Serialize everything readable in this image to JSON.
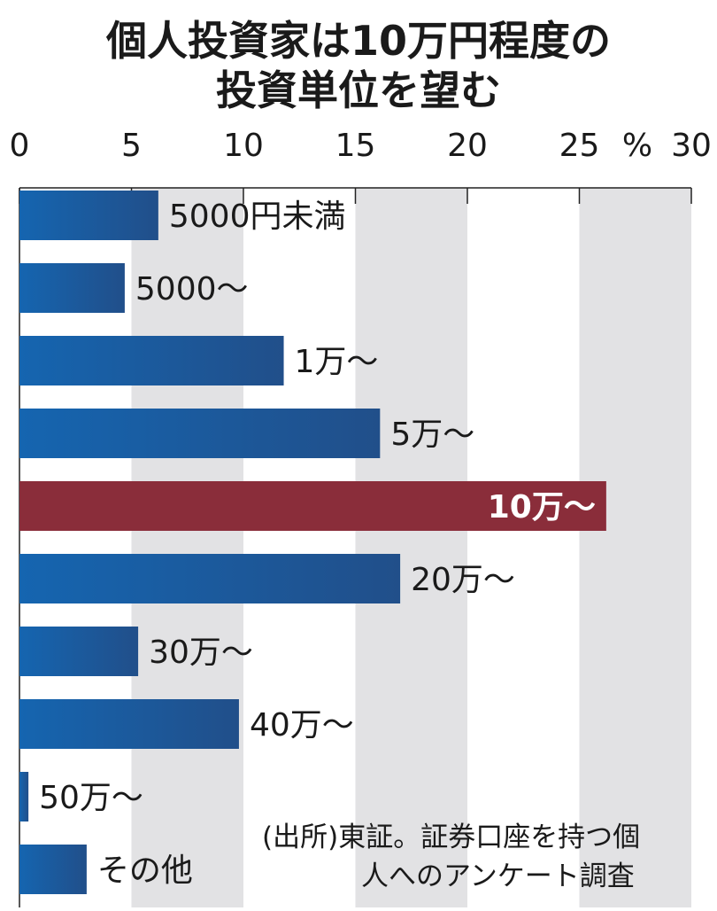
{
  "chart_data": {
    "type": "bar",
    "orientation": "horizontal",
    "title_lines": [
      "個人投資家は10万円程度の",
      "投資単位を望む"
    ],
    "unit": "%",
    "xlim": [
      0,
      30
    ],
    "ticks": [
      "0",
      "5",
      "10",
      "15",
      "20",
      "25",
      "30"
    ],
    "tick_values": [
      0,
      5,
      10,
      15,
      20,
      25,
      30
    ],
    "categories": [
      "5000円未満",
      "5000～",
      "1万～",
      "5万～",
      "10万～",
      "20万～",
      "30万～",
      "40万～",
      "50万～",
      "その他"
    ],
    "values": [
      6.2,
      4.7,
      11.8,
      16.1,
      26.2,
      17.0,
      5.3,
      9.8,
      0.4,
      3.0
    ],
    "highlight_index": 4,
    "source_lines": [
      "(出所)東証。証券口座を持つ個",
      "人へのアンケート調査"
    ],
    "colors": {
      "bar_start": "#1565b0",
      "bar_end": "#214f8a",
      "highlight": "#8a2d3a",
      "band": "#e2e2e4",
      "text": "#1a1a1a"
    }
  }
}
